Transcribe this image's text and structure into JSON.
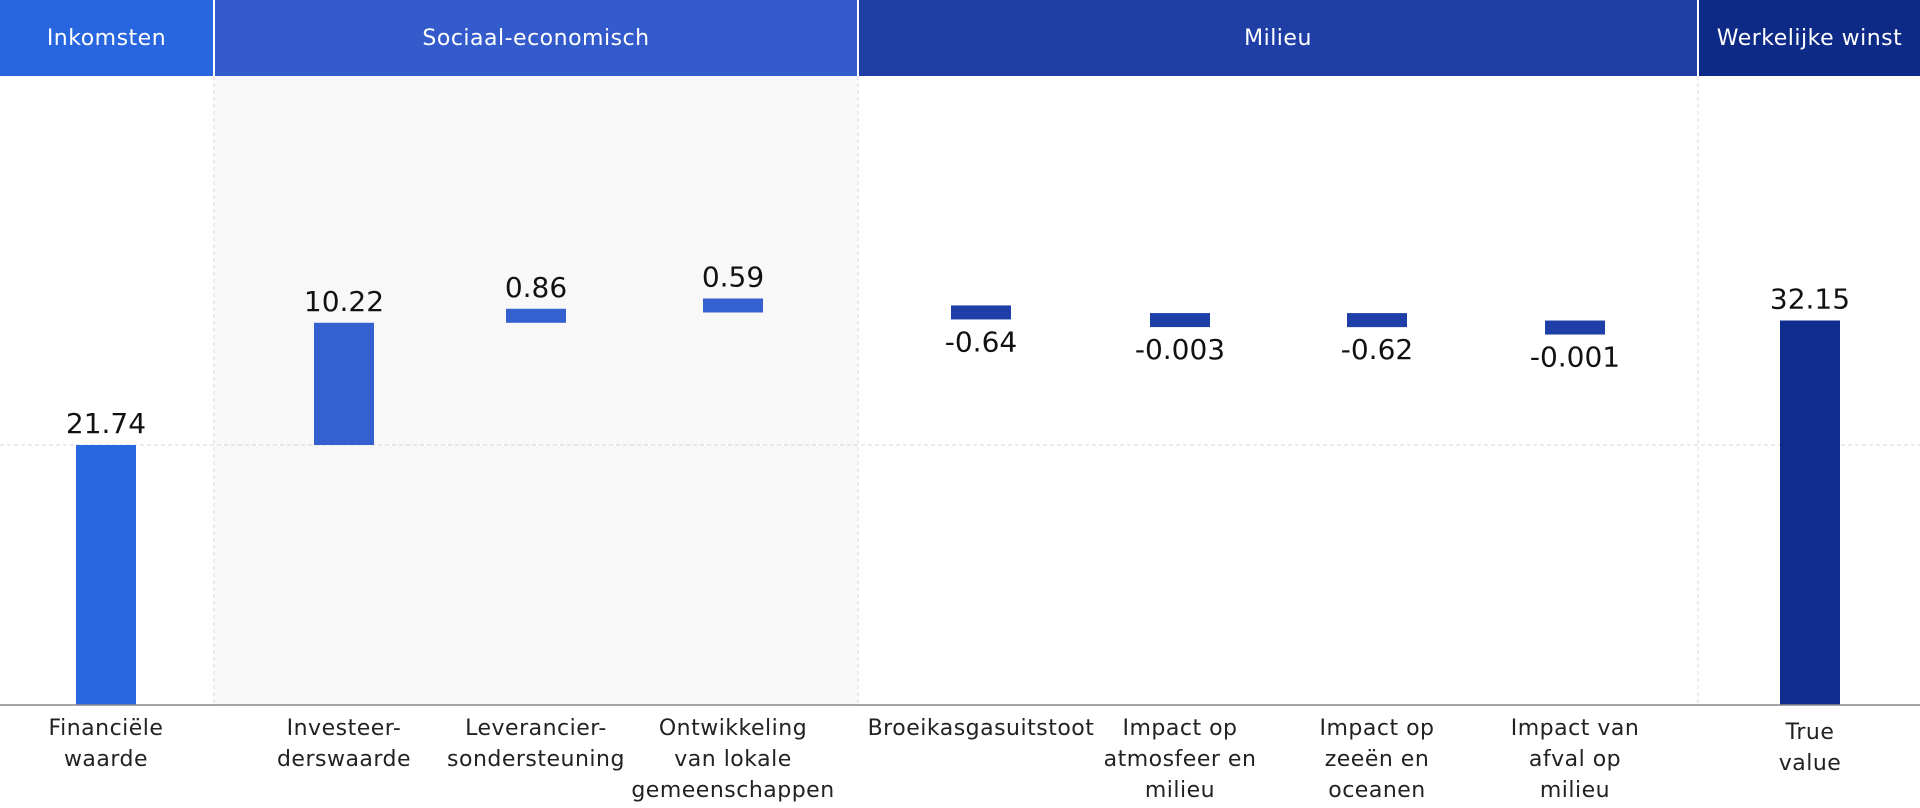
{
  "colors": {
    "income": "#2767E2",
    "socio": "#3460D0",
    "env": "#1E3EA8",
    "total": "#0F2D8F",
    "hdr_income": "#2866E0",
    "hdr_socio": "#345BCB",
    "hdr_env": "#1F3EA6",
    "hdr_total": "#0E2A87",
    "band": "#F8F8F8",
    "grid": "#D8D8D8",
    "axis": "#888888"
  },
  "groups": [
    {
      "key": "income",
      "label": "Inkomsten"
    },
    {
      "key": "socio",
      "label": "Sociaal-economisch"
    },
    {
      "key": "env",
      "label": "Milieu"
    },
    {
      "key": "total",
      "label": "Werkelijke winst"
    }
  ],
  "chart_data": {
    "type": "bar",
    "subtype": "waterfall",
    "title": "",
    "xlabel": "",
    "ylabel": "",
    "grid": true,
    "legend": "none",
    "categories": [
      [
        "Financiële",
        "waarde"
      ],
      [
        "Investeer-",
        "derswaarde"
      ],
      [
        "Leverancier-",
        "sondersteuning"
      ],
      [
        "Ontwikkeling",
        "van lokale",
        "gemeenschappen"
      ],
      [
        "Broeikasgasuitstoot"
      ],
      [
        "Impact op",
        "atmosfeer en",
        "milieu"
      ],
      [
        "Impact op",
        "zeeën en",
        "oceanen"
      ],
      [
        "Impact van",
        "afval op",
        "milieu"
      ],
      [
        "True",
        "value"
      ]
    ],
    "groups_of_categories": [
      "income",
      "socio",
      "socio",
      "socio",
      "env",
      "env",
      "env",
      "env",
      "total"
    ],
    "bar_kind": [
      "absolute",
      "delta",
      "delta",
      "delta",
      "delta",
      "delta",
      "delta",
      "delta",
      "absolute"
    ],
    "values": [
      21.74,
      10.22,
      0.86,
      0.59,
      -0.64,
      -0.003,
      -0.62,
      -0.001,
      32.15
    ],
    "labels": [
      "21.74",
      "10.22",
      "0.86",
      "0.59",
      "-0.64",
      "-0.003",
      "-0.62",
      "-0.001",
      "32.15"
    ]
  }
}
